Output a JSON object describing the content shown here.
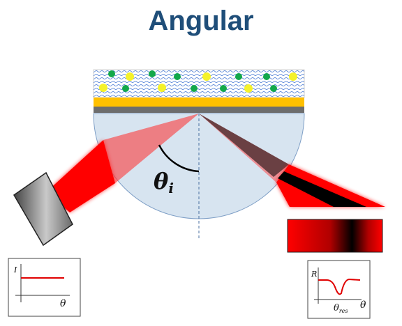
{
  "title": "Angular",
  "colors": {
    "title": "#1f4e79",
    "gold_film": "#ffc000",
    "sample_particle_green": "#12a84a",
    "sample_particle_yellow": "#f5f22a",
    "prism": "#d7e4f0",
    "laser": "#ff0000",
    "resonance_dark_band": "#000000"
  },
  "labels": {
    "incidence_angle_symbol": "θ",
    "incidence_angle_subscript": "i"
  },
  "left_plot": {
    "y_label": "I",
    "x_label": "θ",
    "curve": "flat"
  },
  "right_plot": {
    "y_label": "R",
    "x_label": "θ",
    "dip_label_symbol": "θ",
    "dip_label_subscript": "res",
    "curve": "dip"
  },
  "icons": {
    "light_source": "laser-source-icon",
    "detector": "detector-strip-icon"
  }
}
